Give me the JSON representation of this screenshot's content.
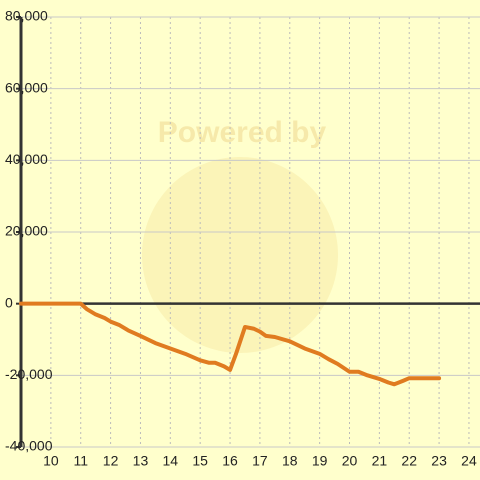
{
  "chart_data": {
    "type": "line",
    "watermark": "Powered by",
    "x": [
      9,
      11,
      11.2,
      11.5,
      11.8,
      12,
      12.3,
      12.6,
      13,
      13.5,
      14,
      14.5,
      15,
      15.3,
      15.5,
      15.8,
      16,
      16.2,
      16.5,
      16.8,
      17,
      17.2,
      17.5,
      18,
      18.5,
      19,
      19.3,
      19.6,
      20,
      20.3,
      20.6,
      21,
      21.3,
      21.5,
      21.8,
      22,
      23
    ],
    "series": [
      {
        "color": "#e07b20",
        "values": [
          0,
          0,
          -1500,
          -3000,
          -4000,
          -5000,
          -6000,
          -7500,
          -9000,
          -11000,
          -12500,
          -14000,
          -15800,
          -16500,
          -16500,
          -17500,
          -18500,
          -14000,
          -6500,
          -7000,
          -7800,
          -9000,
          -9300,
          -10500,
          -12500,
          -14000,
          -15500,
          -16800,
          -19000,
          -19000,
          -20000,
          -21000,
          -22000,
          -22500,
          -21500,
          -20800,
          -20800
        ]
      }
    ],
    "xlim": [
      9,
      24.37
    ],
    "xticks": [
      10,
      11,
      12,
      13,
      14,
      15,
      16,
      17,
      18,
      19,
      20,
      21,
      22,
      23,
      24
    ],
    "ylim": [
      -40000,
      80000
    ],
    "yticks": [
      {
        "value": -40000,
        "label": "-40,000"
      },
      {
        "value": -20000,
        "label": "-20,000"
      },
      0,
      {
        "value": 20000,
        "label": "20,000"
      },
      {
        "value": 40000,
        "label": "40,000"
      },
      {
        "value": 60000,
        "label": "60,000"
      },
      {
        "value": 80000,
        "label": "80,000"
      }
    ],
    "grid": true
  }
}
